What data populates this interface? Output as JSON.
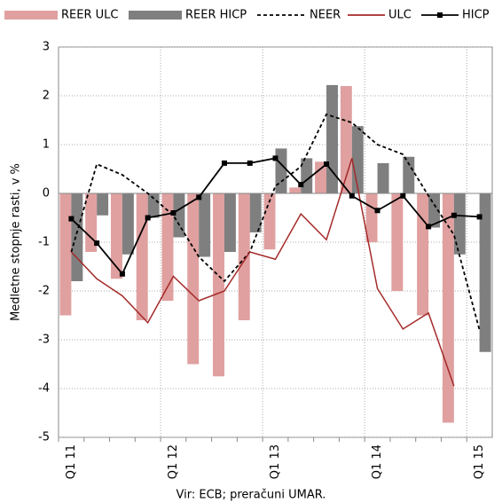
{
  "chart_data": {
    "type": "bar-line",
    "y_label": "Medletne stopnje rasti, v %",
    "source": "Vir: ECB; preračuni UMAR.",
    "categories": [
      "Q1 11",
      null,
      null,
      null,
      "Q1 12",
      null,
      null,
      null,
      "Q1 13",
      null,
      null,
      null,
      "Q1 14",
      null,
      null,
      null,
      "Q1 15"
    ],
    "series": [
      {
        "name": "REER ULC",
        "style": "bar",
        "color": "#e0a0a0",
        "values": [
          -2.5,
          -1.2,
          -1.75,
          -2.6,
          -2.2,
          -3.5,
          -3.75,
          -2.6,
          -1.15,
          0.12,
          0.65,
          2.2,
          -1.0,
          -2.0,
          -2.5,
          -4.7,
          null
        ]
      },
      {
        "name": "REER HICP",
        "style": "bar",
        "color": "#7f7f7f",
        "values": [
          -1.8,
          -0.45,
          -1.25,
          -0.5,
          -0.9,
          -1.3,
          -1.2,
          -0.8,
          0.92,
          0.72,
          2.22,
          1.38,
          0.62,
          0.75,
          -0.7,
          -1.25,
          -3.25
        ]
      },
      {
        "name": "NEER",
        "style": "dashed",
        "color": "#000000",
        "values": [
          -1.2,
          0.6,
          0.38,
          0.0,
          -0.45,
          -1.3,
          -1.8,
          -1.2,
          0.15,
          0.55,
          1.62,
          1.45,
          1.0,
          0.8,
          -0.05,
          -0.85,
          -2.8
        ]
      },
      {
        "name": "ULC",
        "style": "line",
        "color": "#a52a2a",
        "values": [
          -1.2,
          -1.75,
          -2.1,
          -2.65,
          -1.7,
          -2.2,
          -2.0,
          -1.2,
          -1.35,
          -0.42,
          -0.95,
          0.72,
          -1.95,
          -2.78,
          -2.45,
          -3.95,
          null
        ]
      },
      {
        "name": "HICP",
        "style": "line-marker",
        "color": "#000000",
        "values": [
          -0.52,
          -1.02,
          -1.65,
          -0.5,
          -0.4,
          -0.08,
          0.62,
          0.62,
          0.72,
          0.18,
          0.6,
          -0.05,
          -0.35,
          -0.05,
          -0.68,
          -0.45,
          -0.48
        ]
      }
    ],
    "ylim": [
      -5,
      3
    ],
    "yticks": [
      -5,
      -4,
      -3,
      -2,
      -1,
      0,
      1,
      2,
      3
    ],
    "grid": true
  }
}
